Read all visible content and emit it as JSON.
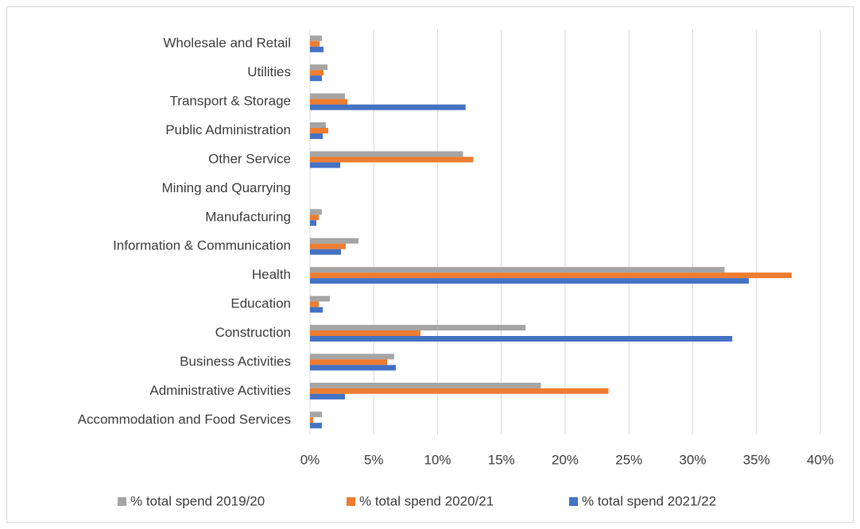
{
  "chart_data": {
    "type": "barh",
    "categories": [
      "Accommodation and Food Services",
      "Administrative Activities",
      "Business Activities",
      "Construction",
      "Education",
      "Health",
      "Information & Communication",
      "Manufacturing",
      "Mining and Quarrying",
      "Other Service",
      "Public Administration",
      "Transport & Storage",
      "Utilities",
      "Wholesale and Retail"
    ],
    "series": [
      {
        "name": "% total spend 2019/20",
        "color": "#a5a5a5",
        "values": [
          0.93,
          18.1,
          6.6,
          16.9,
          1.56,
          32.5,
          3.8,
          0.93,
          0,
          12.0,
          1.25,
          2.74,
          1.37,
          0.93
        ]
      },
      {
        "name": "% total spend 2020/21",
        "color": "#ed7d31",
        "values": [
          0.25,
          23.4,
          6.05,
          8.66,
          0.7,
          37.75,
          2.8,
          0.7,
          0,
          12.8,
          1.43,
          2.93,
          1.06,
          0.75
        ]
      },
      {
        "name": "% total spend 2021/22",
        "color": "#4472c4",
        "values": [
          0.93,
          2.74,
          6.73,
          33.1,
          1.0,
          34.4,
          2.43,
          0.5,
          0,
          2.37,
          1.0,
          12.2,
          0.93,
          1.06
        ]
      }
    ],
    "xlim": [
      0,
      40
    ],
    "xticks": [
      {
        "value": 0,
        "label": "0%"
      },
      {
        "value": 5,
        "label": "5%"
      },
      {
        "value": 10,
        "label": "10%"
      },
      {
        "value": 15,
        "label": "15%"
      },
      {
        "value": 20,
        "label": "20%"
      },
      {
        "value": 25,
        "label": "25%"
      },
      {
        "value": 30,
        "label": "30%"
      },
      {
        "value": 35,
        "label": "35%"
      },
      {
        "value": 40,
        "label": "40%"
      }
    ],
    "grid": true,
    "legend": "bottom"
  }
}
